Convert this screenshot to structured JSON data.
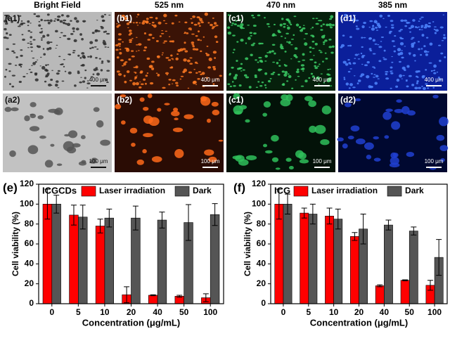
{
  "images": {
    "columns": [
      "Bright Field",
      "525 nm",
      "470 nm",
      "385 nm"
    ],
    "panels": [
      [
        {
          "label": "(a1)",
          "scale": "400 μm"
        },
        {
          "label": "(b1)",
          "scale": "400 μm"
        },
        {
          "label": "(c1)",
          "scale": "400 μm"
        },
        {
          "label": "(d1)",
          "scale": "400 μm"
        }
      ],
      [
        {
          "label": "(a2)",
          "scale": "100 μm"
        },
        {
          "label": "(b2)",
          "scale": "100 μm"
        },
        {
          "label": "(c1)",
          "scale": "100 μm"
        },
        {
          "label": "(d2)",
          "scale": "100 μm"
        }
      ]
    ]
  },
  "chart_data": [
    {
      "type": "bar",
      "title": "(e)",
      "annotation": "ICGCDs",
      "x_label": "Concentration (μg/mL)",
      "y_label": "Cell viability (%)",
      "categories": [
        "0",
        "5",
        "10",
        "20",
        "40",
        "50",
        "100"
      ],
      "series": [
        {
          "name": "Laser irradiation",
          "color": "#ff0000",
          "values": [
            100,
            89,
            78,
            9,
            8.5,
            7.5,
            6
          ],
          "errors": [
            15,
            10,
            7,
            8,
            0.5,
            1,
            4
          ]
        },
        {
          "name": "Dark",
          "color": "#555555",
          "values": [
            100,
            87,
            86,
            86,
            84,
            81.5,
            89.5
          ],
          "errors": [
            9,
            12,
            9,
            12,
            8,
            18,
            11
          ]
        }
      ],
      "ylim": [
        0,
        120
      ],
      "yticks": [
        0,
        20,
        40,
        60,
        80,
        100,
        120
      ],
      "legend": "top"
    },
    {
      "type": "bar",
      "title": "(f)",
      "annotation": "ICG",
      "x_label": "Concentration (μg/mL)",
      "y_label": "Cell viability (%)",
      "categories": [
        "0",
        "5",
        "10",
        "20",
        "40",
        "50",
        "100"
      ],
      "series": [
        {
          "name": "Laser irradiation",
          "color": "#ff0000",
          "values": [
            100,
            91,
            88,
            67.5,
            18,
            23.5,
            18.5
          ],
          "errors": [
            15,
            5,
            8,
            4,
            1,
            0.5,
            5
          ]
        },
        {
          "name": "Dark",
          "color": "#555555",
          "values": [
            100,
            90,
            85,
            75,
            79,
            73,
            46.5
          ],
          "errors": [
            10,
            10,
            10,
            15,
            5,
            4,
            18
          ]
        }
      ],
      "ylim": [
        0,
        120
      ],
      "yticks": [
        0,
        20,
        40,
        60,
        80,
        100,
        120
      ],
      "legend": "top"
    }
  ]
}
